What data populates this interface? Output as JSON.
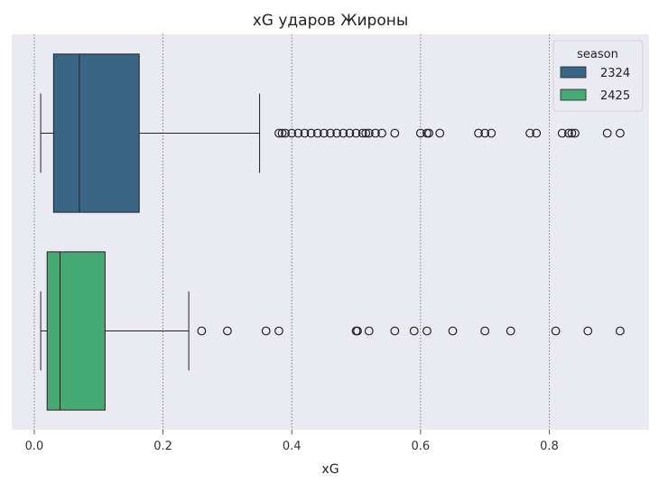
{
  "chart_data": {
    "type": "box",
    "orientation": "horizontal",
    "title": "xG ударов Жироны",
    "xlabel": "xG",
    "ylabel": "",
    "xlim": [
      -0.035,
      0.955
    ],
    "xticks": [
      0.0,
      0.2,
      0.4,
      0.6,
      0.8
    ],
    "xtick_labels": [
      "0.0",
      "0.2",
      "0.4",
      "0.6",
      "0.8"
    ],
    "grid": "x-dotted",
    "background": "#eaeaf2",
    "legend": {
      "title": "season",
      "placement": "top-right"
    },
    "series": [
      {
        "name": "2324",
        "color": "#3b6585",
        "whisker_low": 0.01,
        "q1": 0.03,
        "median": 0.07,
        "q3": 0.163,
        "whisker_high": 0.35,
        "outliers": [
          0.38,
          0.385,
          0.39,
          0.4,
          0.41,
          0.42,
          0.43,
          0.44,
          0.45,
          0.46,
          0.47,
          0.48,
          0.49,
          0.5,
          0.51,
          0.515,
          0.52,
          0.53,
          0.54,
          0.56,
          0.6,
          0.61,
          0.613,
          0.63,
          0.69,
          0.7,
          0.71,
          0.77,
          0.78,
          0.82,
          0.83,
          0.835,
          0.84,
          0.89,
          0.91
        ]
      },
      {
        "name": "2425",
        "color": "#45aa73",
        "whisker_low": 0.01,
        "q1": 0.02,
        "median": 0.04,
        "q3": 0.11,
        "whisker_high": 0.24,
        "outliers": [
          0.26,
          0.3,
          0.36,
          0.38,
          0.5,
          0.502,
          0.52,
          0.56,
          0.59,
          0.61,
          0.65,
          0.7,
          0.74,
          0.81,
          0.86,
          0.91
        ]
      }
    ]
  }
}
